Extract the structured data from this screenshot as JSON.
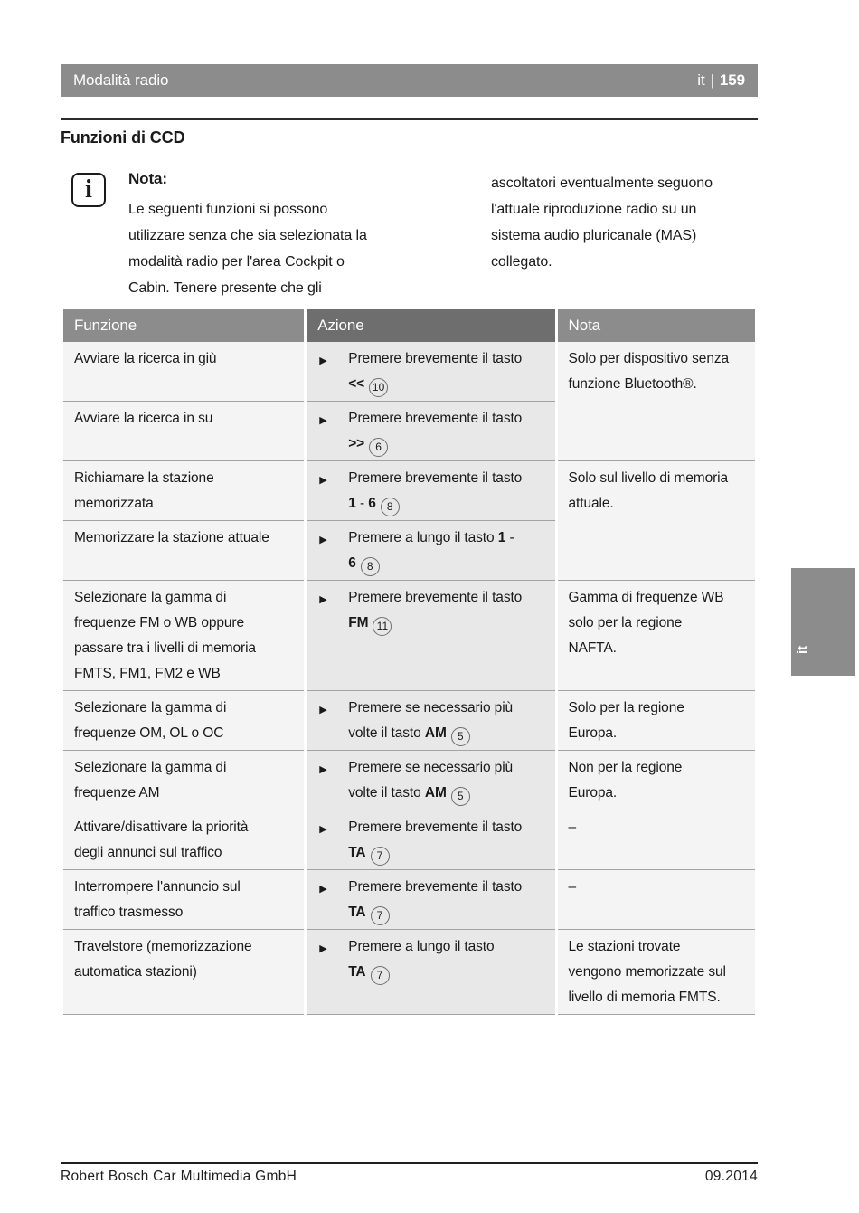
{
  "page_header": {
    "title": "Modalità radio",
    "lang": "it",
    "separator": "|",
    "page_number": "159"
  },
  "section_title": "Funzioni di CCD",
  "note": {
    "icon_glyph": "i",
    "label": "Nota:",
    "column_left": "Le seguenti funzioni si possono\nutilizzare senza che sia selezionata la\nmodalità radio per l'area Cockpit o\nCabin. Tenere presente che gli",
    "column_right": "ascoltatori eventualmente seguono\nl'attuale riproduzione radio su un\nsistema audio pluricanale (MAS)\ncollegato."
  },
  "table": {
    "headers": [
      "Funzione",
      "Azione",
      "Nota"
    ],
    "bullet": "▶",
    "rows": [
      {
        "funzione": "Avviare la ricerca in giù",
        "action": [
          {
            "t": "Premere brevemente il tasto"
          },
          {
            "br": true
          },
          {
            "b": "<<"
          },
          {
            "c": "10"
          }
        ],
        "nota": "Solo per dispositivo senza\nfunzione Bluetooth®.",
        "nota_rowspan": 2
      },
      {
        "funzione": "Avviare la ricerca in su",
        "action": [
          {
            "t": "Premere brevemente il tasto"
          },
          {
            "br": true
          },
          {
            "b": ">>"
          },
          {
            "c": "6"
          }
        ],
        "nota": null
      },
      {
        "funzione": "Richiamare la stazione\nmemorizzata",
        "action": [
          {
            "t": "Premere brevemente il tasto"
          },
          {
            "br": true
          },
          {
            "b": "1"
          },
          {
            "t": " - "
          },
          {
            "b": "6"
          },
          {
            "c": "8"
          }
        ],
        "nota": "Solo sul livello di memoria\nattuale.",
        "nota_rowspan": 2
      },
      {
        "funzione": "Memorizzare la stazione attuale",
        "action": [
          {
            "t": "Premere a lungo il tasto "
          },
          {
            "b": "1"
          },
          {
            "t": " -"
          },
          {
            "br": true
          },
          {
            "b": "6"
          },
          {
            "c": "8"
          }
        ],
        "nota": null
      },
      {
        "funzione": "Selezionare la gamma di\nfrequenze FM o WB oppure\npassare tra i livelli di memoria\nFMTS, FM1, FM2 e WB",
        "action": [
          {
            "t": "Premere brevemente il tasto"
          },
          {
            "br": true
          },
          {
            "b": "FM"
          },
          {
            "c": "11"
          }
        ],
        "nota": "Gamma di frequenze WB\nsolo per la regione\nNAFTA."
      },
      {
        "funzione": "Selezionare la gamma di\nfrequenze OM, OL o OC",
        "action": [
          {
            "t": "Premere se necessario più"
          },
          {
            "br": true
          },
          {
            "t": "volte il tasto "
          },
          {
            "b": "AM"
          },
          {
            "c": "5"
          }
        ],
        "nota": "Solo per la regione\nEuropa."
      },
      {
        "funzione": "Selezionare la gamma di\nfrequenze AM",
        "action": [
          {
            "t": "Premere se necessario più"
          },
          {
            "br": true
          },
          {
            "t": "volte il tasto "
          },
          {
            "b": "AM"
          },
          {
            "c": "5"
          }
        ],
        "nota": "Non per la regione\nEuropa."
      },
      {
        "funzione": "Attivare/disattivare la priorità\ndegli annunci sul traffico",
        "action": [
          {
            "t": "Premere brevemente il tasto"
          },
          {
            "br": true
          },
          {
            "b": "TA"
          },
          {
            "c": "7"
          }
        ],
        "nota": "–"
      },
      {
        "funzione": "Interrompere l'annuncio sul\ntraffico trasmesso",
        "action": [
          {
            "t": "Premere brevemente il tasto"
          },
          {
            "br": true
          },
          {
            "b": "TA"
          },
          {
            "c": "7"
          }
        ],
        "nota": "–"
      },
      {
        "funzione": "Travelstore (memorizzazione\nautomatica stazioni)",
        "action": [
          {
            "t": "Premere a lungo il tasto"
          },
          {
            "br": true
          },
          {
            "b": "TA"
          },
          {
            "c": "7"
          }
        ],
        "nota": "Le stazioni trovate\nvengono memorizzate sul\nlivello di memoria FMTS."
      }
    ]
  },
  "side_tab": {
    "label": "it"
  },
  "footer": {
    "company": "Robert Bosch Car Multimedia GmbH",
    "date": "09.2014"
  },
  "colors": {
    "header_bar": "#8c8c8c",
    "action_header": "#6e6e6e",
    "cell_light": "#f4f4f4",
    "cell_action": "#e8e8e8",
    "row_line": "#a3a3a3"
  }
}
